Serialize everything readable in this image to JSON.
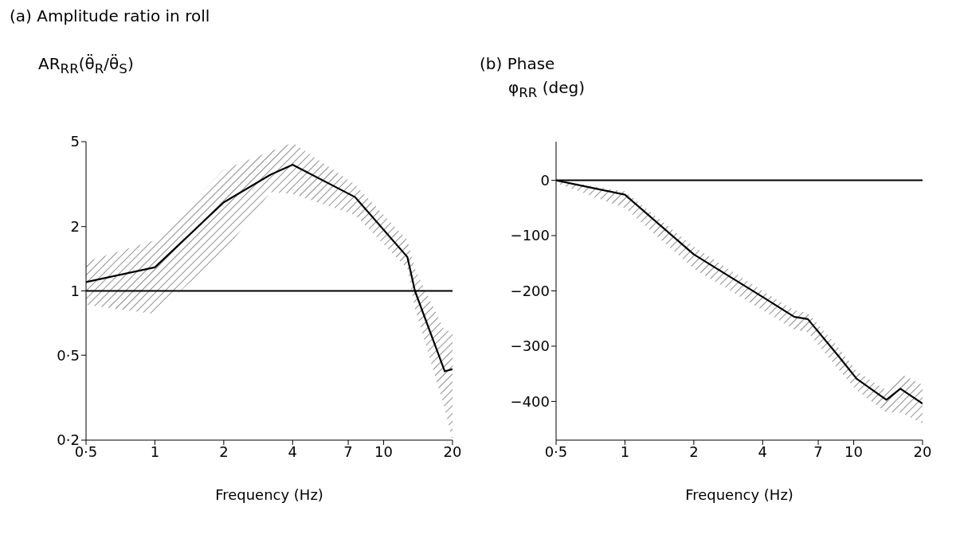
{
  "chart_data": [
    {
      "type": "line",
      "title": "(a) Amplitude ratio in roll",
      "ylabel": "AR$_{RR}$(θ̈$_{R}$/θ̈$_{S}$)",
      "xlabel": "Frequency (Hz)",
      "log": "xy",
      "xlim": [
        0.5,
        20
      ],
      "xticks": [
        {
          "value": 0.5,
          "label": "0·5"
        },
        1,
        2,
        4,
        7,
        10,
        20
      ],
      "ylim": [
        0.2,
        5
      ],
      "yticks": [
        {
          "value": 0.2,
          "label": "0·2"
        },
        {
          "value": 0.5,
          "label": "0·5"
        },
        1,
        2,
        5
      ],
      "ref_lines": [
        {
          "axis": "y",
          "value": 1,
          "color": "#000000"
        }
      ],
      "x": [
        0.5,
        1,
        2,
        3.2,
        4,
        7.5,
        12.7,
        13.7,
        18.5,
        20
      ],
      "series": [
        {
          "color": "#000000",
          "values": [
            1.1,
            1.29,
            2.6,
            3.5,
            3.9,
            2.75,
            1.44,
            1.0,
            0.42,
            0.43
          ],
          "lower": [
            0.86,
            0.78,
            1.52,
            2.9,
            2.85,
            2.27,
            1.27,
            0.83,
            0.28,
            0.2
          ],
          "upper": [
            1.37,
            1.73,
            3.7,
            4.5,
            4.95,
            3.15,
            1.73,
            1.27,
            0.65,
            0.65
          ]
        }
      ]
    },
    {
      "type": "line",
      "title": "(b) Phase",
      "ylabel": "φ$_{RR}$ (deg)",
      "xlabel": "Frequency (Hz)",
      "log": "x",
      "xlim": [
        0.5,
        20
      ],
      "xticks": [
        {
          "value": 0.5,
          "label": "0·5"
        },
        1,
        2,
        4,
        7,
        10,
        20
      ],
      "ylim": [
        -470,
        70
      ],
      "yticks": [
        0,
        {
          "value": -100,
          "label": "−100"
        },
        {
          "value": -200,
          "label": "−200"
        },
        {
          "value": -300,
          "label": "−300"
        },
        {
          "value": -400,
          "label": "−400"
        }
      ],
      "ref_lines": [
        {
          "axis": "y",
          "value": 0,
          "color": "#000000"
        }
      ],
      "x": [
        0.5,
        1,
        2,
        4,
        5.5,
        6.3,
        8.5,
        10.3,
        13.9,
        16,
        20
      ],
      "series": [
        {
          "color": "#000000",
          "values": [
            0,
            -26,
            -134,
            -211,
            -247,
            -251,
            -316,
            -359,
            -397,
            -377,
            -404
          ],
          "lower": [
            -5,
            -50,
            -160,
            -235,
            -270,
            -275,
            -340,
            -380,
            -420,
            -420,
            -440
          ],
          "upper": [
            0,
            -20,
            -120,
            -200,
            -235,
            -240,
            -300,
            -345,
            -380,
            -350,
            -370
          ]
        }
      ]
    }
  ]
}
